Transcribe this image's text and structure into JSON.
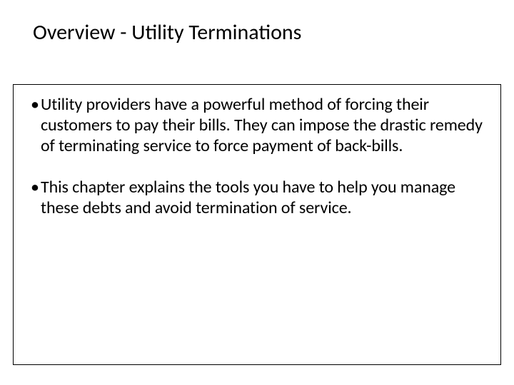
{
  "slide": {
    "title": "Overview - Utility Terminations",
    "bullets": [
      "Utility providers have a powerful method of forcing their customers to pay their bills. They can impose the drastic remedy of terminating service to force payment of back-bills.",
      "This chapter explains the tools you have to help you manage these debts and avoid termination of service."
    ]
  },
  "style": {
    "background_color": "#ffffff",
    "text_color": "#000000",
    "title_fontsize": 30,
    "body_fontsize": 24,
    "box_border_color": "#000000",
    "font_family": "Calibri"
  }
}
